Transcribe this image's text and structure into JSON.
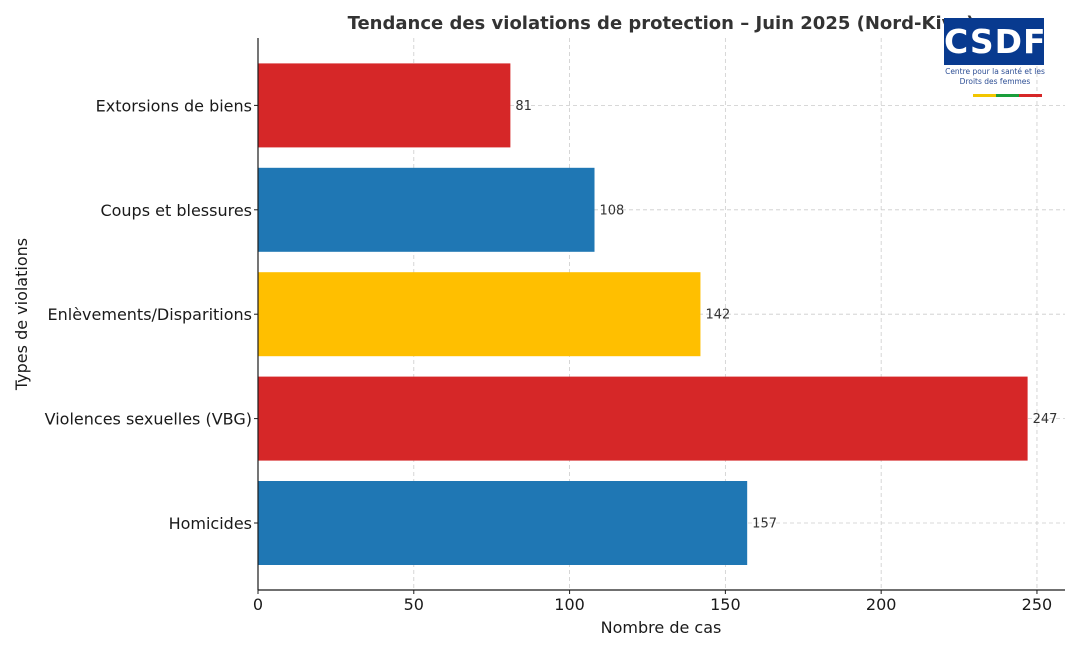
{
  "chart_data": {
    "type": "bar",
    "orientation": "horizontal",
    "title": "Tendance des violations de protection – Juin 2025 (Nord-Kivu)",
    "xlabel": "Nombre de cas",
    "ylabel": "Types de violations",
    "categories": [
      "Homicides",
      "Violences sexuelles (VBG)",
      "Enlèvements/Disparitions",
      "Coups et blessures",
      "Extorsions de biens"
    ],
    "values": [
      157,
      247,
      142,
      108,
      81
    ],
    "data_labels": [
      "157",
      "247",
      "142",
      "108",
      "81"
    ],
    "colors": [
      "#1f77b4",
      "#d62728",
      "#ffbf00",
      "#1f77b4",
      "#d62728"
    ],
    "xlim": [
      0,
      259
    ],
    "xticks": [
      0,
      50,
      100,
      150,
      200,
      250
    ],
    "xtick_labels": [
      "0",
      "50",
      "100",
      "150",
      "200",
      "250"
    ],
    "grid": true
  },
  "logo": {
    "text": "CSDF",
    "subtitle_line1": "Centre pour la santé et les",
    "subtitle_line2": "Droits des femmes",
    "colors": {
      "box": "#083a8f",
      "text": "#ffffff",
      "stripe": [
        "#f2c600",
        "#1a9e3b",
        "#d62728"
      ]
    }
  }
}
